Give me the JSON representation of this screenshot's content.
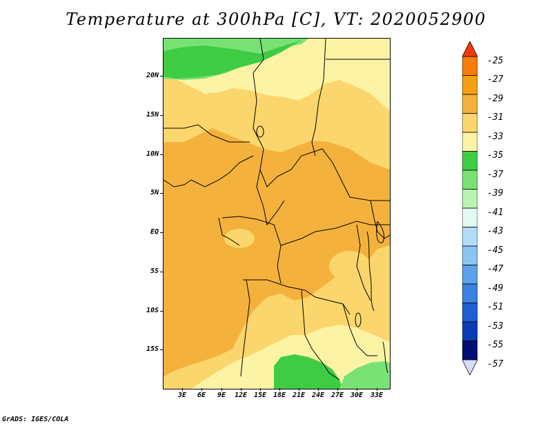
{
  "title": "Temperature at 300hPa [C], VT: 2020052900",
  "credit": "GrADS: IGES/COLA",
  "map": {
    "region": "Central Africa",
    "lat_labels": [
      "20N",
      "15N",
      "10N",
      "5N",
      "EQ",
      "5S",
      "10S",
      "15S"
    ],
    "lon_labels": [
      "3E",
      "6E",
      "9E",
      "12E",
      "15E",
      "18E",
      "21E",
      "24E",
      "27E",
      "30E",
      "33E"
    ],
    "field_colors": {
      "dominant": "#f4b23c",
      "light": "#fbe27a",
      "pale": "#fdf3a4",
      "green": "#3fcc45",
      "light_green": "#78e374"
    }
  },
  "colorbar": {
    "labels": [
      "-25",
      "-27",
      "-29",
      "-31",
      "-33",
      "-35",
      "-37",
      "-39",
      "-41",
      "-43",
      "-45",
      "-47",
      "-49",
      "-51",
      "-53",
      "-55",
      "-57"
    ],
    "colors": [
      "#f43c02",
      "#f77d06",
      "#f4a013",
      "#f4b23c",
      "#fbd66c",
      "#fdf3a4",
      "#3fcc45",
      "#78e374",
      "#b8f4b0",
      "#e2fbf2",
      "#b3dcf8",
      "#8cc4f4",
      "#5aa2ec",
      "#3a82e2",
      "#1e5ed0",
      "#0a3cb4",
      "#000e76",
      "#d8dcfc"
    ]
  }
}
